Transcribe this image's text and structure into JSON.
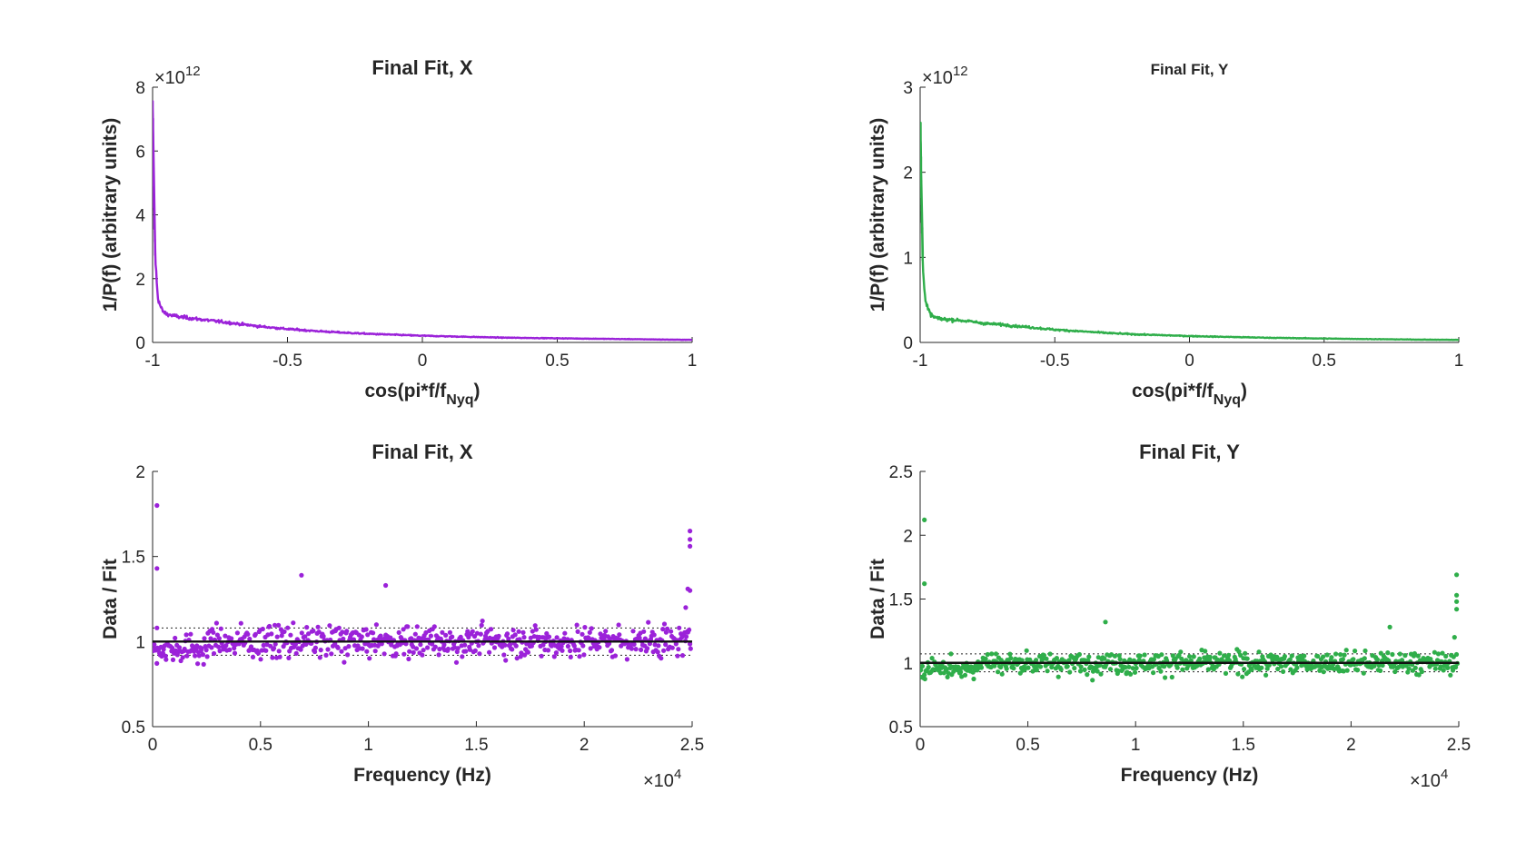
{
  "chart_data": [
    {
      "type": "line",
      "title": "Final Fit, X",
      "xlabel": "cos(pi*f/f",
      "xlabel_sub": "Nyq",
      "xlabel_end": ")",
      "ylabel": "1/P(f) (arbitrary units)",
      "xlim": [
        -1,
        1
      ],
      "ylim": [
        0,
        8
      ],
      "xticks": [
        "-1",
        "-0.5",
        "0",
        "0.5",
        "1"
      ],
      "yticks": [
        "0",
        "2",
        "4",
        "6",
        "8"
      ],
      "yexponent": "12",
      "color": "#9b22d9",
      "x": [
        -1.0,
        -0.998,
        -0.996,
        -0.993,
        -0.99,
        -0.985,
        -0.98,
        -0.97,
        -0.96,
        -0.95,
        -0.93,
        -0.9,
        -0.85,
        -0.8,
        -0.75,
        -0.7,
        -0.6,
        -0.5,
        -0.4,
        -0.3,
        -0.2,
        -0.1,
        0.0,
        0.1,
        0.2,
        0.3,
        0.4,
        0.5,
        0.6,
        0.7,
        0.8,
        0.9,
        1.0
      ],
      "y": [
        7.2,
        6.4,
        5.2,
        3.8,
        2.7,
        1.9,
        1.4,
        1.1,
        0.95,
        0.9,
        0.85,
        0.8,
        0.75,
        0.7,
        0.65,
        0.6,
        0.5,
        0.42,
        0.36,
        0.31,
        0.27,
        0.24,
        0.21,
        0.19,
        0.17,
        0.15,
        0.14,
        0.13,
        0.12,
        0.11,
        0.1,
        0.09,
        0.08
      ]
    },
    {
      "type": "line",
      "title": "Final Fit, Y",
      "xlabel": "cos(pi*f/f",
      "xlabel_sub": "Nyq",
      "xlabel_end": ")",
      "ylabel": "1/P(f) (arbitrary units)",
      "xlim": [
        -1,
        1
      ],
      "ylim": [
        0,
        3
      ],
      "xticks": [
        "-1",
        "-0.5",
        "0",
        "0.5",
        "1"
      ],
      "yticks": [
        "0",
        "1",
        "2",
        "3"
      ],
      "yexponent": "12",
      "color": "#2fae4a",
      "x": [
        -1.0,
        -0.998,
        -0.996,
        -0.993,
        -0.99,
        -0.985,
        -0.98,
        -0.97,
        -0.96,
        -0.95,
        -0.93,
        -0.9,
        -0.85,
        -0.8,
        -0.75,
        -0.7,
        -0.6,
        -0.5,
        -0.4,
        -0.3,
        -0.2,
        -0.1,
        0.0,
        0.1,
        0.2,
        0.3,
        0.4,
        0.5,
        0.6,
        0.7,
        0.8,
        0.9,
        1.0
      ],
      "y": [
        2.6,
        2.3,
        1.9,
        1.4,
        0.95,
        0.65,
        0.48,
        0.38,
        0.33,
        0.3,
        0.28,
        0.27,
        0.26,
        0.24,
        0.22,
        0.21,
        0.18,
        0.15,
        0.13,
        0.11,
        0.095,
        0.085,
        0.075,
        0.068,
        0.061,
        0.055,
        0.05,
        0.046,
        0.042,
        0.038,
        0.035,
        0.032,
        0.03
      ]
    },
    {
      "type": "scatter",
      "title": "Final Fit, X",
      "xlabel": "Frequency (Hz)",
      "ylabel": "Data / Fit",
      "xlim": [
        0,
        2.5
      ],
      "ylim": [
        0.5,
        2
      ],
      "xticks": [
        "0",
        "0.5",
        "1",
        "1.5",
        "2",
        "2.5"
      ],
      "yticks": [
        "0.5",
        "1",
        "1.5",
        "2"
      ],
      "xexponent": "4",
      "color": "#9b22d9",
      "mean_line": 1.0,
      "band": [
        0.92,
        1.08
      ],
      "spread": 0.09,
      "outliers": [
        [
          0.02,
          1.8
        ],
        [
          0.02,
          1.43
        ],
        [
          0.02,
          1.08
        ],
        [
          0.69,
          1.39
        ],
        [
          1.08,
          1.33
        ],
        [
          2.49,
          1.65
        ],
        [
          2.49,
          1.6
        ],
        [
          2.49,
          1.56
        ],
        [
          2.48,
          1.31
        ],
        [
          2.49,
          1.3
        ],
        [
          2.47,
          1.2
        ]
      ]
    },
    {
      "type": "scatter",
      "title": "Final Fit, Y",
      "xlabel": "Frequency (Hz)",
      "ylabel": "Data / Fit",
      "xlim": [
        0,
        2.5
      ],
      "ylim": [
        0.5,
        2.5
      ],
      "xticks": [
        "0",
        "0.5",
        "1",
        "1.5",
        "2",
        "2.5"
      ],
      "yticks": [
        "0.5",
        "1",
        "1.5",
        "2",
        "2.5"
      ],
      "xexponent": "4",
      "color": "#2fae4a",
      "mean_line": 1.0,
      "band": [
        0.93,
        1.07
      ],
      "spread": 0.08,
      "outliers": [
        [
          0.02,
          2.12
        ],
        [
          0.02,
          1.62
        ],
        [
          0.86,
          1.32
        ],
        [
          2.18,
          1.28
        ],
        [
          2.49,
          1.69
        ],
        [
          2.49,
          1.53
        ],
        [
          2.49,
          1.48
        ],
        [
          2.49,
          1.42
        ],
        [
          2.48,
          1.2
        ]
      ]
    }
  ]
}
